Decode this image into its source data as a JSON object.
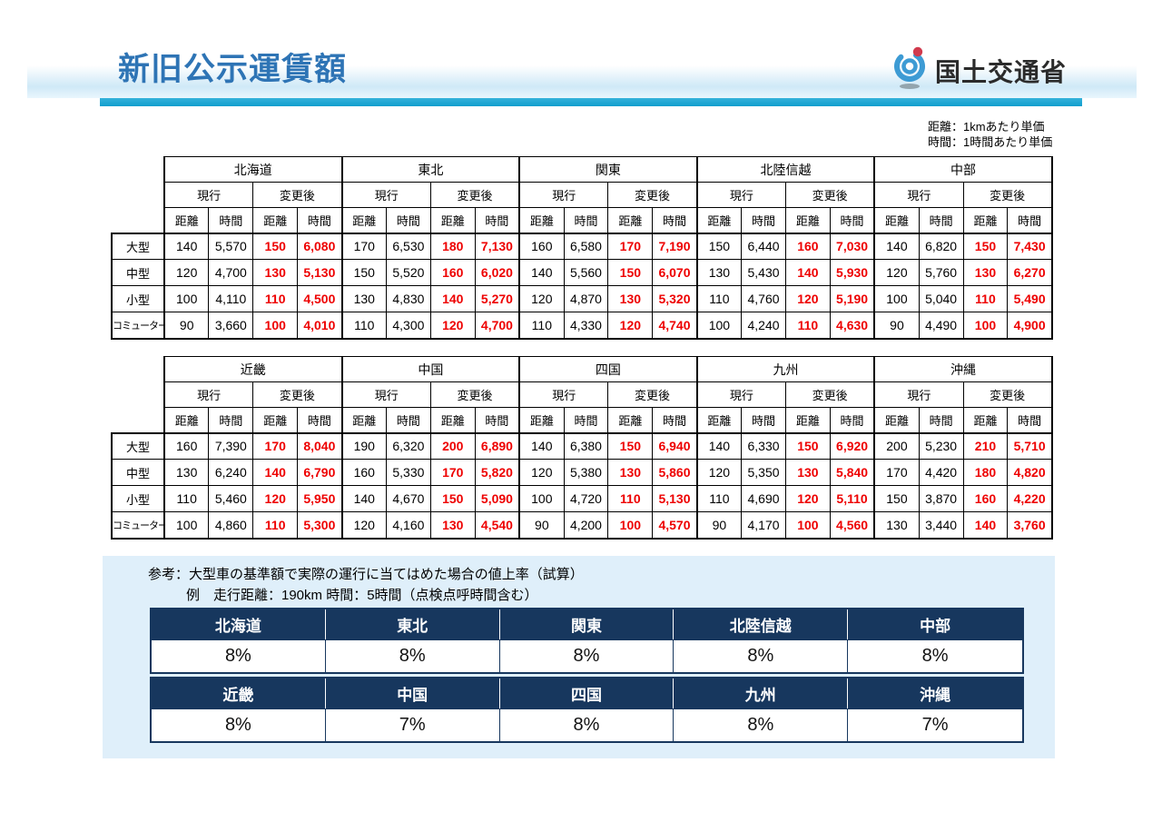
{
  "header": {
    "title": "新旧公示運賃額",
    "logo_text": "国土交通省"
  },
  "unit_note": {
    "line1": "距離：1kmあたり単価",
    "line2": "時間：1時間あたり単価"
  },
  "fare_tables": {
    "column_labels": {
      "current": "現行",
      "revised": "変更後",
      "distance": "距離",
      "time": "時間"
    },
    "vehicle_classes": [
      "大型",
      "中型",
      "小型",
      "コミューター"
    ],
    "tables": [
      {
        "regions": [
          {
            "name": "北海道",
            "rows": [
              [
                "140",
                "5,570",
                "150",
                "6,080"
              ],
              [
                "120",
                "4,700",
                "130",
                "5,130"
              ],
              [
                "100",
                "4,110",
                "110",
                "4,500"
              ],
              [
                "90",
                "3,660",
                "100",
                "4,010"
              ]
            ]
          },
          {
            "name": "東北",
            "rows": [
              [
                "170",
                "6,530",
                "180",
                "7,130"
              ],
              [
                "150",
                "5,520",
                "160",
                "6,020"
              ],
              [
                "130",
                "4,830",
                "140",
                "5,270"
              ],
              [
                "110",
                "4,300",
                "120",
                "4,700"
              ]
            ]
          },
          {
            "name": "関東",
            "rows": [
              [
                "160",
                "6,580",
                "170",
                "7,190"
              ],
              [
                "140",
                "5,560",
                "150",
                "6,070"
              ],
              [
                "120",
                "4,870",
                "130",
                "5,320"
              ],
              [
                "110",
                "4,330",
                "120",
                "4,740"
              ]
            ]
          },
          {
            "name": "北陸信越",
            "rows": [
              [
                "150",
                "6,440",
                "160",
                "7,030"
              ],
              [
                "130",
                "5,430",
                "140",
                "5,930"
              ],
              [
                "110",
                "4,760",
                "120",
                "5,190"
              ],
              [
                "100",
                "4,240",
                "110",
                "4,630"
              ]
            ]
          },
          {
            "name": "中部",
            "rows": [
              [
                "140",
                "6,820",
                "150",
                "7,430"
              ],
              [
                "120",
                "5,760",
                "130",
                "6,270"
              ],
              [
                "100",
                "5,040",
                "110",
                "5,490"
              ],
              [
                "90",
                "4,490",
                "100",
                "4,900"
              ]
            ]
          }
        ]
      },
      {
        "regions": [
          {
            "name": "近畿",
            "rows": [
              [
                "160",
                "7,390",
                "170",
                "8,040"
              ],
              [
                "130",
                "6,240",
                "140",
                "6,790"
              ],
              [
                "110",
                "5,460",
                "120",
                "5,950"
              ],
              [
                "100",
                "4,860",
                "110",
                "5,300"
              ]
            ]
          },
          {
            "name": "中国",
            "rows": [
              [
                "190",
                "6,320",
                "200",
                "6,890"
              ],
              [
                "160",
                "5,330",
                "170",
                "5,820"
              ],
              [
                "140",
                "4,670",
                "150",
                "5,090"
              ],
              [
                "120",
                "4,160",
                "130",
                "4,540"
              ]
            ]
          },
          {
            "name": "四国",
            "rows": [
              [
                "140",
                "6,380",
                "150",
                "6,940"
              ],
              [
                "120",
                "5,380",
                "130",
                "5,860"
              ],
              [
                "100",
                "4,720",
                "110",
                "5,130"
              ],
              [
                "90",
                "4,200",
                "100",
                "4,570"
              ]
            ]
          },
          {
            "name": "九州",
            "rows": [
              [
                "140",
                "6,330",
                "150",
                "6,920"
              ],
              [
                "120",
                "5,350",
                "130",
                "5,840"
              ],
              [
                "110",
                "4,690",
                "120",
                "5,110"
              ],
              [
                "90",
                "4,170",
                "100",
                "4,560"
              ]
            ]
          },
          {
            "name": "沖縄",
            "rows": [
              [
                "200",
                "5,230",
                "210",
                "5,710"
              ],
              [
                "170",
                "4,420",
                "180",
                "4,820"
              ],
              [
                "150",
                "3,870",
                "160",
                "4,220"
              ],
              [
                "130",
                "3,440",
                "140",
                "3,760"
              ]
            ]
          }
        ]
      }
    ]
  },
  "reference": {
    "note_line1": "参考：大型車の基準額で実際の運行に当てはめた場合の値上率（試算）",
    "note_line2": "例　走行距離：190km 時間：5時間（点検点呼時間含む）",
    "pct_tables": [
      {
        "regions": [
          "北海道",
          "東北",
          "関東",
          "北陸信越",
          "中部"
        ],
        "values": [
          "8%",
          "8%",
          "8%",
          "8%",
          "8%"
        ]
      },
      {
        "regions": [
          "近畿",
          "中国",
          "四国",
          "九州",
          "沖縄"
        ],
        "values": [
          "8%",
          "7%",
          "8%",
          "8%",
          "7%"
        ]
      }
    ]
  },
  "colors": {
    "title_blue": "#2E74B5",
    "accent_cyan": "#1BA7D4",
    "navy": "#17375E",
    "highlight_red": "#EE0000",
    "panel_blue": "#DFEFFA"
  }
}
